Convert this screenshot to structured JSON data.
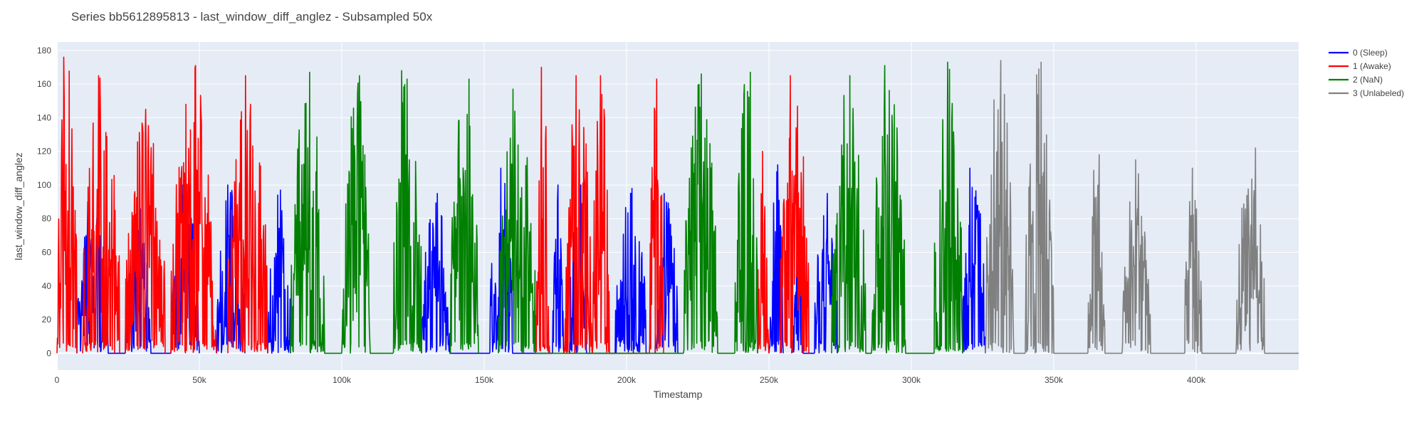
{
  "chart_data": {
    "type": "line",
    "title": "Series bb5612895813 - last_window_diff_anglez - Subsampled 50x",
    "xlabel": "Timestamp",
    "ylabel": "last_window_diff_anglez",
    "xlim": [
      0,
      436000
    ],
    "ylim": [
      -10,
      185
    ],
    "x_ticks": [
      0,
      50000,
      100000,
      150000,
      200000,
      250000,
      300000,
      350000,
      400000
    ],
    "x_tick_labels": [
      "0",
      "50k",
      "100k",
      "150k",
      "200k",
      "250k",
      "300k",
      "350k",
      "400k"
    ],
    "y_ticks": [
      0,
      20,
      40,
      60,
      80,
      100,
      120,
      140,
      160,
      180
    ],
    "y_tick_labels": [
      "0",
      "20",
      "40",
      "60",
      "80",
      "100",
      "120",
      "140",
      "160",
      "180"
    ],
    "grid": true,
    "legend_position": "top-right",
    "plot_background": "#e5ecf6",
    "series": [
      {
        "name": "0 (Sleep)",
        "color": "#0000ff",
        "segments": [
          [
            7000,
            18000,
            90
          ],
          [
            24000,
            33000,
            90
          ],
          [
            40000,
            50000,
            100
          ],
          [
            56000,
            66000,
            100
          ],
          [
            74000,
            82000,
            97
          ],
          [
            128000,
            138000,
            95
          ],
          [
            152000,
            160000,
            110
          ],
          [
            174000,
            178000,
            100
          ],
          [
            180000,
            186000,
            100
          ],
          [
            196000,
            207000,
            98
          ],
          [
            210000,
            218000,
            95
          ],
          [
            250000,
            255000,
            112
          ],
          [
            258000,
            262000,
            95
          ],
          [
            266000,
            274000,
            95
          ],
          [
            318000,
            326000,
            110
          ]
        ]
      },
      {
        "name": "1 (Awake)",
        "color": "#ff0000",
        "segments": [
          [
            0,
            7000,
            176
          ],
          [
            9000,
            22000,
            165
          ],
          [
            24000,
            38000,
            145
          ],
          [
            40000,
            56000,
            171
          ],
          [
            60000,
            74000,
            165
          ],
          [
            168000,
            173000,
            170
          ],
          [
            178000,
            188000,
            165
          ],
          [
            188000,
            194000,
            165
          ],
          [
            208000,
            213000,
            163
          ],
          [
            246000,
            250000,
            120
          ],
          [
            254000,
            264000,
            165
          ]
        ]
      },
      {
        "name": "2 (NaN)",
        "color": "#008000",
        "segments": [
          [
            82000,
            94000,
            167
          ],
          [
            100000,
            110000,
            165
          ],
          [
            118000,
            128000,
            168
          ],
          [
            138000,
            148000,
            163
          ],
          [
            155000,
            168000,
            157
          ],
          [
            220000,
            232000,
            166
          ],
          [
            238000,
            246000,
            167
          ],
          [
            272000,
            284000,
            165
          ],
          [
            286000,
            298000,
            171
          ],
          [
            308000,
            318000,
            173
          ]
        ]
      },
      {
        "name": "3 (Unlabeled)",
        "color": "#808080",
        "segments": [
          [
            326000,
            336000,
            174
          ],
          [
            340000,
            350000,
            173
          ],
          [
            362000,
            368000,
            118
          ],
          [
            374000,
            384000,
            115
          ],
          [
            396000,
            402000,
            110
          ],
          [
            414000,
            424000,
            122
          ]
        ]
      }
    ]
  }
}
